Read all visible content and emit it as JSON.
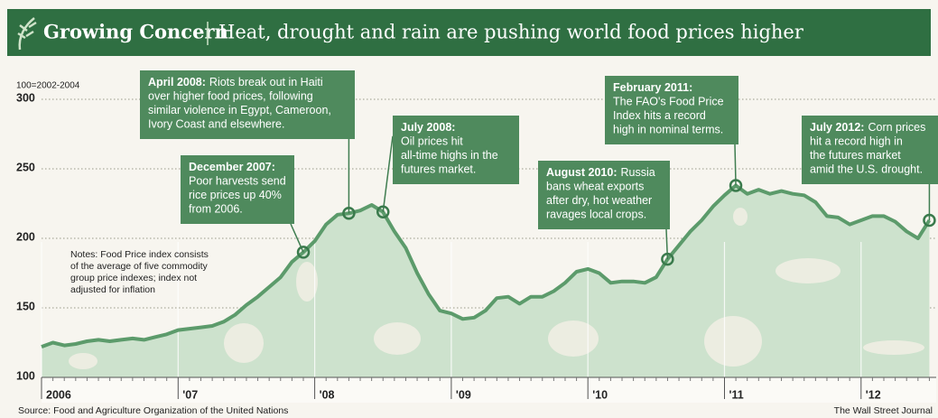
{
  "chart_data": {
    "type": "area",
    "title": "Growing Concern",
    "subtitle": "Heat, drought and rain are pushing world food prices higher",
    "y_label": "100=2002-2004",
    "notes": [
      "Notes: Food Price index consists",
      "of the average of five commodity",
      "group price indexes; index not",
      "adjusted for inflation"
    ],
    "source": "Source: Food and Agriculture Organization of the United Nations",
    "credit": "The Wall Street Journal",
    "color": "#5c9b6b",
    "fill": "#cde2cd",
    "grid": true,
    "x": [
      2006,
      2006.083,
      2006.167,
      2006.25,
      2006.333,
      2006.417,
      2006.5,
      2006.583,
      2006.667,
      2006.75,
      2006.833,
      2006.917,
      2007,
      2007.083,
      2007.167,
      2007.25,
      2007.333,
      2007.417,
      2007.5,
      2007.583,
      2007.667,
      2007.75,
      2007.833,
      2007.917,
      2008,
      2008.083,
      2008.167,
      2008.25,
      2008.333,
      2008.417,
      2008.5,
      2008.583,
      2008.667,
      2008.75,
      2008.833,
      2008.917,
      2009,
      2009.083,
      2009.167,
      2009.25,
      2009.333,
      2009.417,
      2009.5,
      2009.583,
      2009.667,
      2009.75,
      2009.833,
      2009.917,
      2010,
      2010.083,
      2010.167,
      2010.25,
      2010.333,
      2010.417,
      2010.5,
      2010.583,
      2010.667,
      2010.75,
      2010.833,
      2010.917,
      2011,
      2011.083,
      2011.167,
      2011.25,
      2011.333,
      2011.417,
      2011.5,
      2011.583,
      2011.667,
      2011.75,
      2011.833,
      2011.917,
      2012,
      2012.083,
      2012.167,
      2012.25,
      2012.333,
      2012.417,
      2012.5
    ],
    "values": [
      122,
      125,
      123,
      124,
      126,
      127,
      126,
      127,
      128,
      127,
      129,
      131,
      134,
      135,
      136,
      137,
      140,
      145,
      152,
      158,
      165,
      172,
      183,
      190,
      198,
      210,
      217,
      218,
      220,
      224,
      219,
      205,
      193,
      175,
      160,
      148,
      146,
      142,
      143,
      148,
      157,
      158,
      153,
      158,
      158,
      162,
      168,
      176,
      178,
      175,
      168,
      169,
      169,
      168,
      172,
      185,
      195,
      205,
      213,
      223,
      231,
      238,
      232,
      235,
      232,
      234,
      232,
      231,
      226,
      216,
      215,
      210,
      213,
      216,
      216,
      212,
      205,
      200,
      213
    ],
    "xlim": [
      2006,
      2012.55
    ],
    "ylim": [
      100,
      300
    ],
    "yticks": [
      100,
      150,
      200,
      250,
      300
    ],
    "xticks": [
      {
        "value": 2006,
        "label": "2006"
      },
      {
        "value": 2007,
        "label": "'07"
      },
      {
        "value": 2008,
        "label": "'08"
      },
      {
        "value": 2009,
        "label": "'09"
      },
      {
        "value": 2010,
        "label": "'10"
      },
      {
        "value": 2011,
        "label": "'11"
      },
      {
        "value": 2012,
        "label": "'12"
      }
    ],
    "annotations": [
      {
        "x": 2007.917,
        "label": "December 2007:",
        "lines": [
          "Poor harvests send",
          "rice prices up 40%",
          "from 2006."
        ]
      },
      {
        "x": 2008.25,
        "label": "April 2008:",
        "lines": [
          "Riots break out in Haiti",
          "over higher food prices, following",
          "similar violence in Egypt, Cameroon,",
          "Ivory Coast and elsewhere."
        ]
      },
      {
        "x": 2008.5,
        "label": "July 2008:",
        "lines": [
          "Oil prices hit",
          "all-time highs in the",
          "futures market."
        ]
      },
      {
        "x": 2010.583,
        "label": "August 2010:",
        "lines": [
          "Russia",
          "bans wheat exports",
          "after dry, hot weather",
          "ravages local crops."
        ]
      },
      {
        "x": 2011.083,
        "label": "February 2011:",
        "lines": [
          "The FAO's Food Price",
          "Index hits a record",
          "high in nominal terms."
        ]
      },
      {
        "x": 2012.5,
        "label": "July 2012:",
        "lines": [
          "Corn prices",
          "hit a record high in",
          "the futures market",
          "amid the U.S. drought."
        ]
      }
    ]
  }
}
